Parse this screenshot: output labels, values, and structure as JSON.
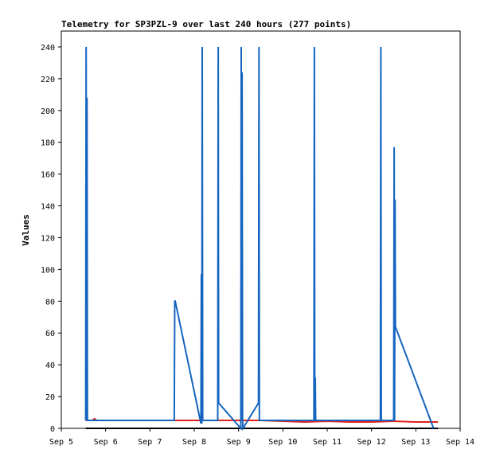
{
  "chart_data": {
    "type": "line",
    "title": "Telemetry for SP3PZL-9 over last 240 hours (277 points)",
    "xlabel": "",
    "ylabel": "Values",
    "xlim": [
      "Sep 5",
      "Sep 14"
    ],
    "ylim": [
      0,
      250
    ],
    "x_ticks": [
      "Sep 5",
      "Sep 6",
      "Sep 7",
      "Sep 8",
      "Sep 9",
      "Sep 10",
      "Sep 11",
      "Sep 12",
      "Sep 13",
      "Sep 14"
    ],
    "y_ticks": [
      0,
      20,
      40,
      60,
      80,
      100,
      120,
      140,
      160,
      180,
      200,
      220,
      240
    ],
    "grid": false,
    "legend": "none",
    "series": [
      {
        "color": "#1565c0",
        "x_days": [
          5.55,
          5.56,
          5.57,
          5.58,
          5.59,
          5.6,
          7.55,
          7.56,
          7.57,
          8.15,
          8.16,
          8.17,
          8.18,
          8.19,
          8.2,
          8.53,
          8.54,
          8.55,
          9.05,
          9.06,
          9.07,
          9.08,
          9.09,
          9.1,
          9.45,
          9.46,
          9.47,
          10.7,
          10.71,
          10.72,
          10.73,
          10.74,
          12.2,
          12.21,
          12.22,
          12.5,
          12.51,
          12.52,
          12.53,
          12.54,
          13.4
        ],
        "values": [
          5,
          240,
          5,
          208,
          5,
          5,
          5,
          80,
          80,
          3,
          97,
          3,
          240,
          5,
          5,
          5,
          240,
          16,
          0,
          240,
          5,
          224,
          5,
          0,
          16,
          240,
          5,
          5,
          240,
          5,
          32,
          5,
          5,
          240,
          5,
          5,
          177,
          5,
          144,
          64,
          0
        ]
      },
      {
        "color": "#e0201c",
        "x_days": [
          5.55,
          5.7,
          5.75,
          5.8,
          6.5,
          7.0,
          7.5,
          8.0,
          8.5,
          9.0,
          9.5,
          10.0,
          10.5,
          11.0,
          11.5,
          12.0,
          12.5,
          13.0,
          13.5
        ],
        "values": [
          5,
          5,
          6,
          5,
          5,
          5,
          5,
          5,
          5,
          5,
          5,
          4.5,
          4,
          4.5,
          4,
          4,
          4.5,
          4,
          4
        ]
      },
      {
        "color": "#000000",
        "x_days": [
          5.55,
          13.5
        ],
        "values": [
          0,
          0
        ]
      }
    ]
  }
}
